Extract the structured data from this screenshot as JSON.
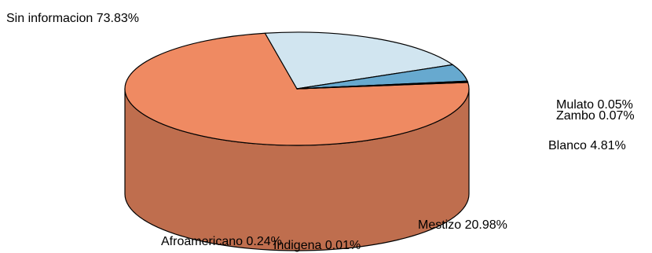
{
  "chart_data": {
    "type": "pie",
    "style": "3d",
    "title": "",
    "slices": [
      {
        "label": "Sin informacion",
        "percent_text": "73.83%",
        "value": 73.83,
        "color": "#EF8A62"
      },
      {
        "label": "Mestizo",
        "percent_text": "20.98%",
        "value": 20.98,
        "color": "#D1E5F0"
      },
      {
        "label": "Blanco",
        "percent_text": "4.81%",
        "value": 4.81,
        "color": "#67A9CF"
      },
      {
        "label": "Zambo",
        "percent_text": "0.07%",
        "value": 0.07,
        "color": "#67A9CF"
      },
      {
        "label": "Mulato",
        "percent_text": "0.05%",
        "value": 0.05,
        "color": "#67A9CF"
      },
      {
        "label": "Indigena",
        "percent_text": "0.01%",
        "value": 0.01,
        "color": "#D1E5F0"
      },
      {
        "label": "Afroamericano",
        "percent_text": "0.24%",
        "value": 0.24,
        "color": "#EF8A62"
      }
    ]
  }
}
